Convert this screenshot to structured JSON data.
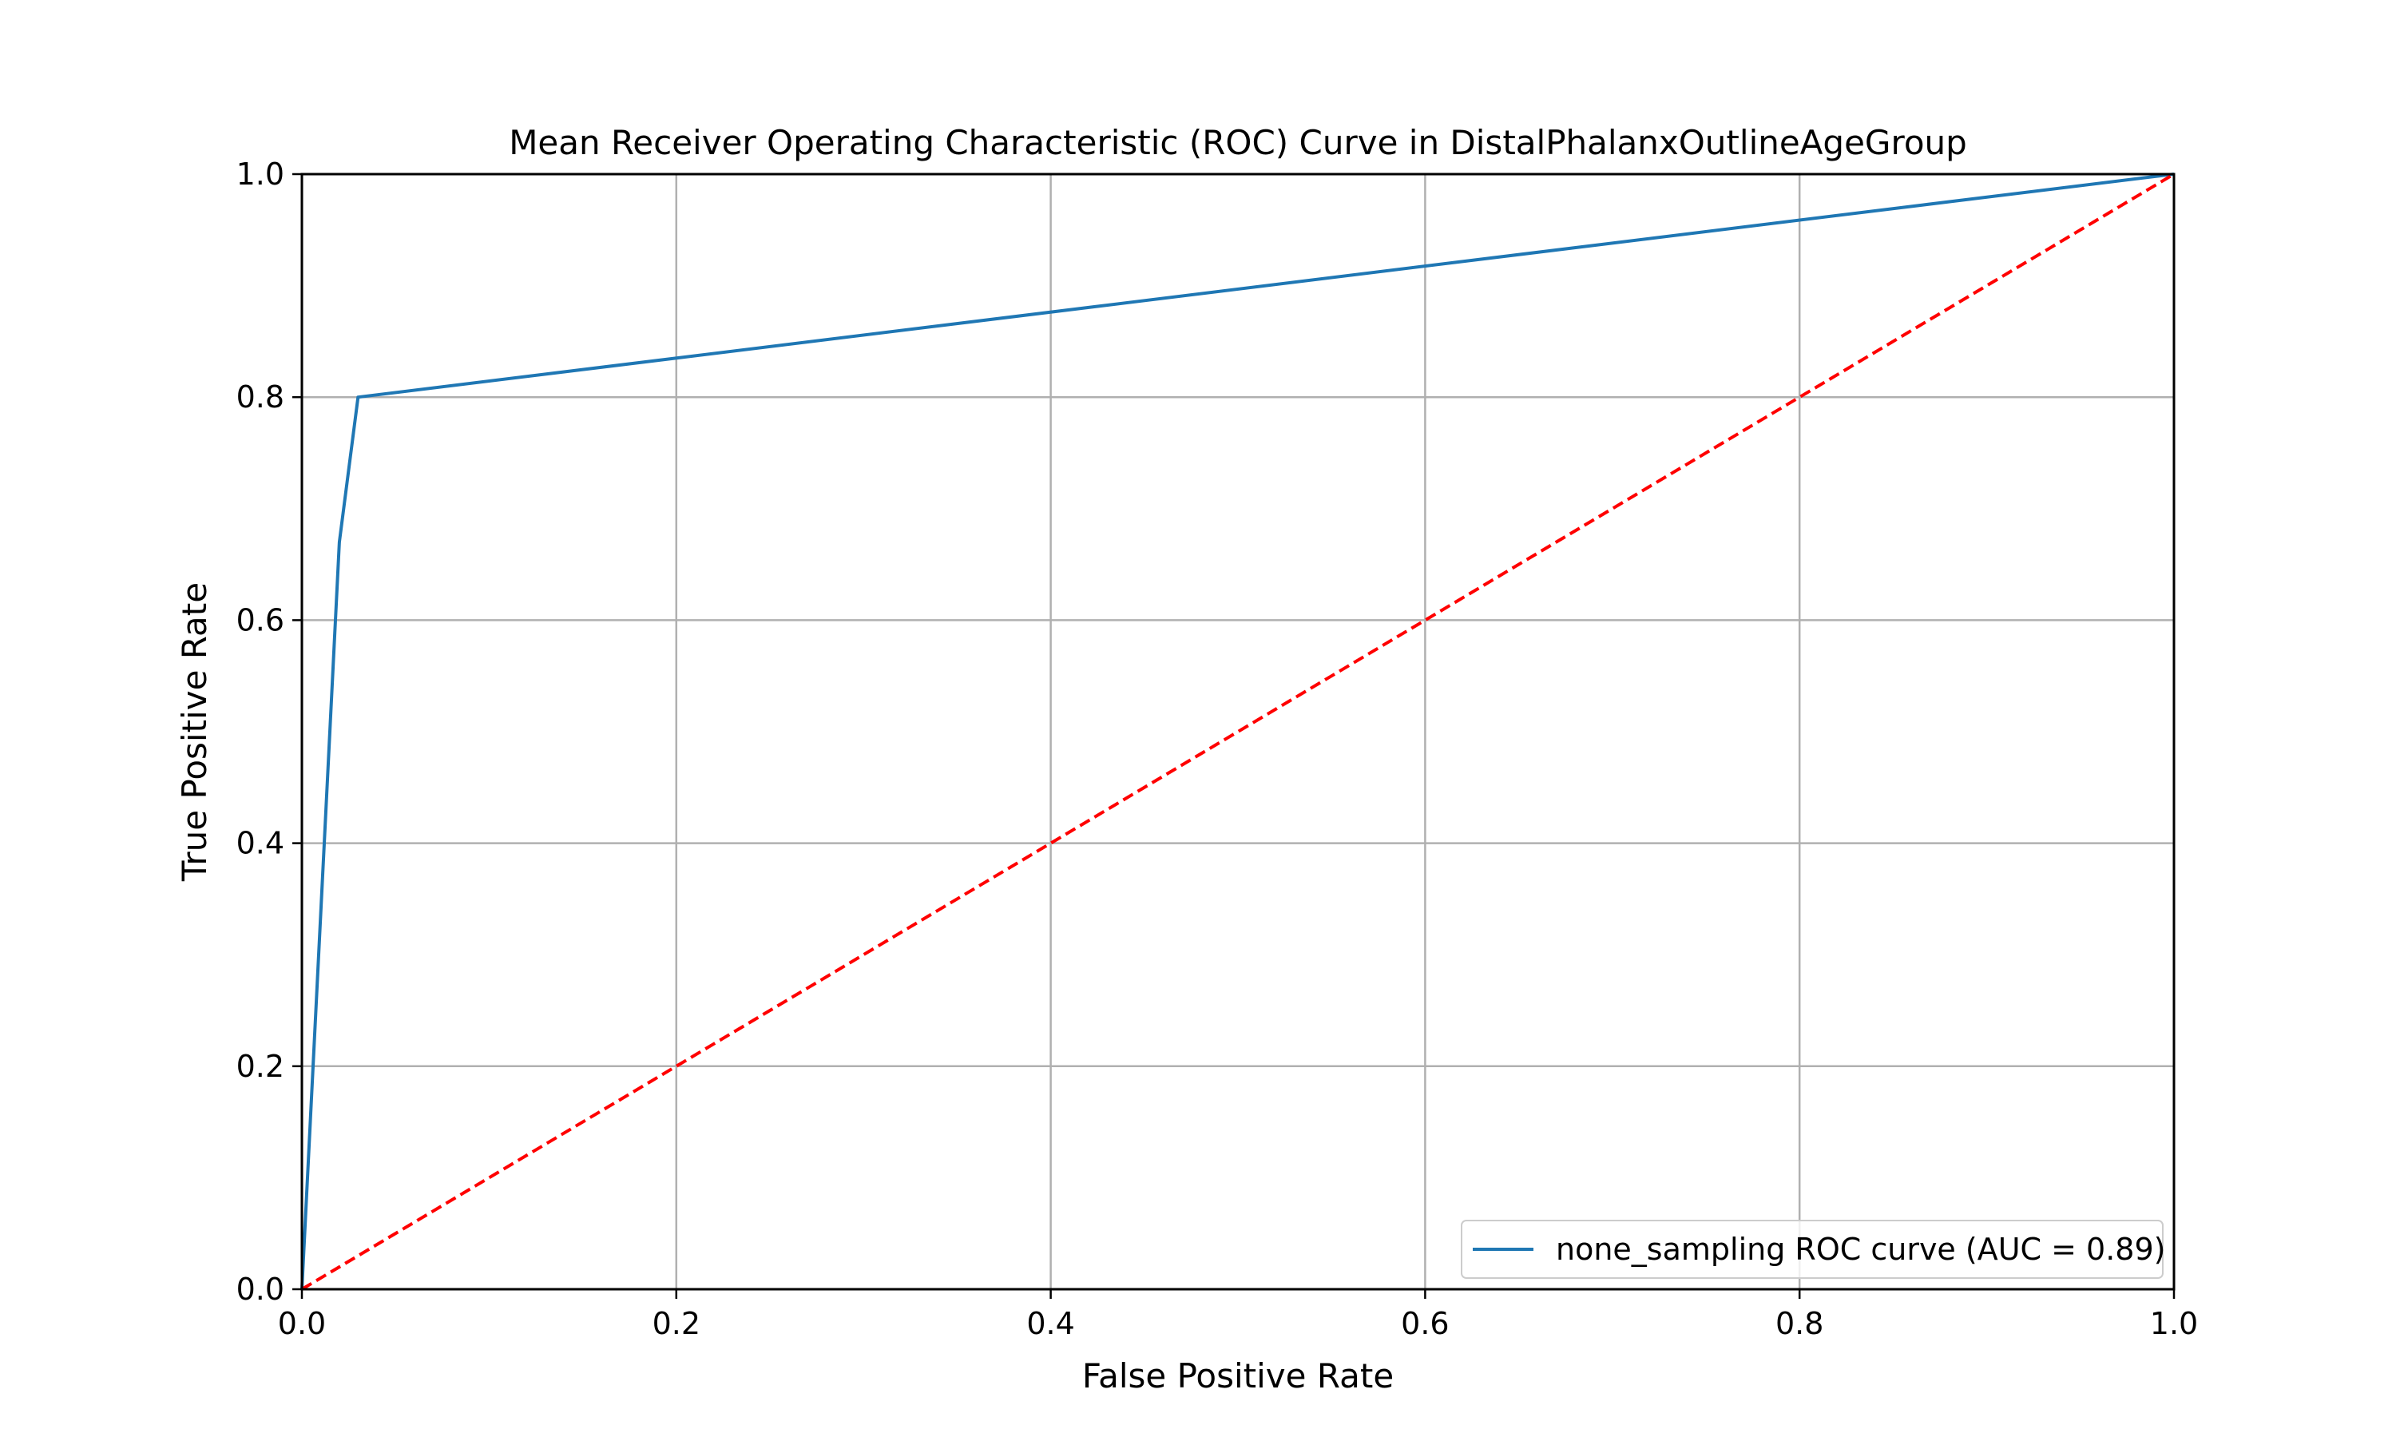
{
  "chart_data": {
    "type": "line",
    "title": "Mean Receiver Operating Characteristic (ROC) Curve in DistalPhalanxOutlineAgeGroup",
    "xlabel": "False Positive Rate",
    "ylabel": "True Positive Rate",
    "xlim": [
      0.0,
      1.0
    ],
    "ylim": [
      0.0,
      1.0
    ],
    "x_ticks": [
      "0.0",
      "0.2",
      "0.4",
      "0.6",
      "0.8",
      "1.0"
    ],
    "y_ticks": [
      "0.0",
      "0.2",
      "0.4",
      "0.6",
      "0.8",
      "1.0"
    ],
    "grid": true,
    "legend_position": "lower-right",
    "series": [
      {
        "name": "none_sampling ROC curve (AUC = 0.89)",
        "color": "#1f77b4",
        "line_style": "solid",
        "x": [
          0.0,
          0.02,
          0.03,
          1.0
        ],
        "y": [
          0.0,
          0.67,
          0.8,
          1.0
        ]
      },
      {
        "color": "#ff0000",
        "line_style": "dashed",
        "x": [
          0.0,
          1.0
        ],
        "y": [
          0.0,
          1.0
        ]
      }
    ]
  }
}
